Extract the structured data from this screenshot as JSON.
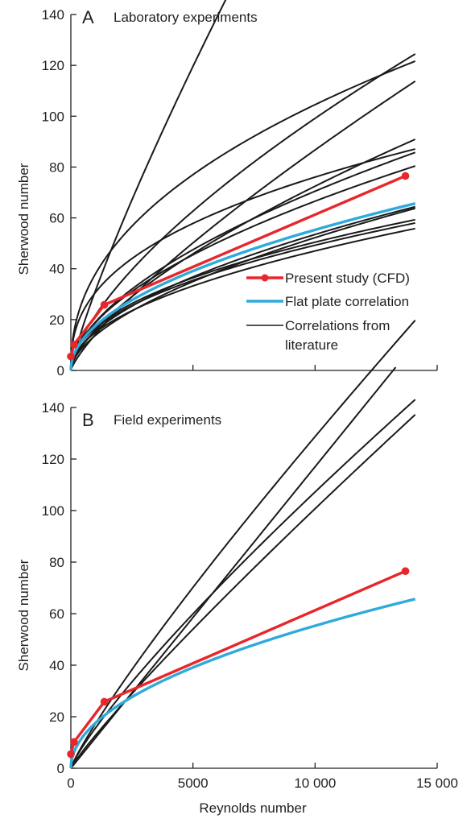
{
  "colors": {
    "present_study": "#e8262b",
    "flat_plate": "#2eaadc",
    "literature": "#1a1a1a",
    "axis": "#231f20"
  },
  "chart_data": [
    {
      "panel": "A",
      "type": "line",
      "title": "Laboratory experiments",
      "xlabel": "",
      "ylabel": "Sherwood number",
      "xlim": [
        0,
        15000
      ],
      "ylim": [
        0,
        140
      ],
      "x_ticks": [
        0,
        5000,
        10000,
        15000
      ],
      "x_tick_labels": [
        "",
        "",
        "",
        ""
      ],
      "y_ticks": [
        0,
        20,
        40,
        60,
        80,
        100,
        120,
        140
      ],
      "y_tick_labels": [
        "0",
        "20",
        "40",
        "60",
        "80",
        "100",
        "120",
        "140"
      ],
      "legend": {
        "placement": "lower-right",
        "entries": [
          {
            "label": "Present study (CFD)",
            "series": "present_study"
          },
          {
            "label": "Flat plate correlation",
            "series": "flat_plate"
          },
          {
            "label": "Correlations from literature",
            "series": "literature",
            "lines": [
              "Correlations from",
              "literature"
            ]
          }
        ]
      },
      "series": [
        {
          "key": "present_study",
          "kind": "points",
          "x": [
            0,
            130,
            1370,
            13700
          ],
          "y": [
            5.5,
            10.2,
            25.8,
            76.5
          ]
        },
        {
          "key": "flat_plate",
          "kind": "power",
          "coef": 0.553,
          "exp": 0.5,
          "x_end": 14100
        },
        {
          "key": "literature",
          "kind": "power",
          "coef": 0.0975,
          "exp": 0.835,
          "x_end": 11300
        },
        {
          "key": "literature",
          "kind": "power",
          "coef": 1.8,
          "exp": 0.441,
          "x_end": 14100
        },
        {
          "key": "literature",
          "kind": "power",
          "coef": 0.223,
          "exp": 0.662,
          "x_end": 14100
        },
        {
          "key": "literature",
          "kind": "power",
          "coef": 0.06,
          "exp": 0.79,
          "x_end": 14100
        },
        {
          "key": "literature",
          "kind": "power",
          "coef": 2.0,
          "exp": 0.395,
          "x_end": 14100
        },
        {
          "key": "literature",
          "kind": "power",
          "coef": 0.37,
          "exp": 0.57,
          "x_end": 14100
        },
        {
          "key": "literature",
          "kind": "power",
          "coef": 0.166,
          "exp": 0.66,
          "x_end": 14100
        },
        {
          "key": "literature",
          "kind": "power",
          "coef": 0.42,
          "exp": 0.55,
          "x_end": 14100
        },
        {
          "key": "literature",
          "kind": "power",
          "coef": 0.25,
          "exp": 0.58,
          "x_end": 14100
        },
        {
          "key": "literature",
          "kind": "power",
          "coef": 0.37,
          "exp": 0.54,
          "x_end": 14100
        },
        {
          "key": "literature",
          "kind": "power",
          "coef": 0.47,
          "exp": 0.5,
          "x_end": 14100
        },
        {
          "key": "literature",
          "kind": "power",
          "coef": 0.665,
          "exp": 0.47,
          "x_end": 14100
        },
        {
          "key": "literature",
          "kind": "power",
          "coef": 0.62,
          "exp": 0.475,
          "x_end": 14100
        }
      ]
    },
    {
      "panel": "B",
      "type": "line",
      "title": "Field experiments",
      "xlabel": "Reynolds number",
      "ylabel": "Sherwood number",
      "xlim": [
        0,
        15000
      ],
      "ylim": [
        0,
        140
      ],
      "x_ticks": [
        0,
        5000,
        10000,
        15000
      ],
      "x_tick_labels": [
        "0",
        "5000",
        "10 000",
        "15 000"
      ],
      "y_ticks": [
        0,
        20,
        40,
        60,
        80,
        100,
        120,
        140
      ],
      "y_tick_labels": [
        "0",
        "20",
        "40",
        "60",
        "80",
        "100",
        "120",
        "140"
      ],
      "series": [
        {
          "key": "present_study",
          "kind": "points",
          "x": [
            0,
            130,
            1370,
            13700
          ],
          "y": [
            5.5,
            10.2,
            25.8,
            76.5
          ]
        },
        {
          "key": "flat_plate",
          "kind": "power",
          "coef": 0.553,
          "exp": 0.5,
          "x_end": 14100
        },
        {
          "key": "literature",
          "kind": "power",
          "coef": 0.0117,
          "exp": 1.0,
          "x_end": 13300
        },
        {
          "key": "literature",
          "kind": "power",
          "coef": 0.0407,
          "exp": 0.875,
          "x_end": 14100
        },
        {
          "key": "literature",
          "kind": "power",
          "coef": 0.0253,
          "exp": 0.9,
          "x_end": 14100
        },
        {
          "key": "literature",
          "kind": "power",
          "coef": 0.0468,
          "exp": 0.84,
          "x_end": 14100
        }
      ]
    }
  ]
}
